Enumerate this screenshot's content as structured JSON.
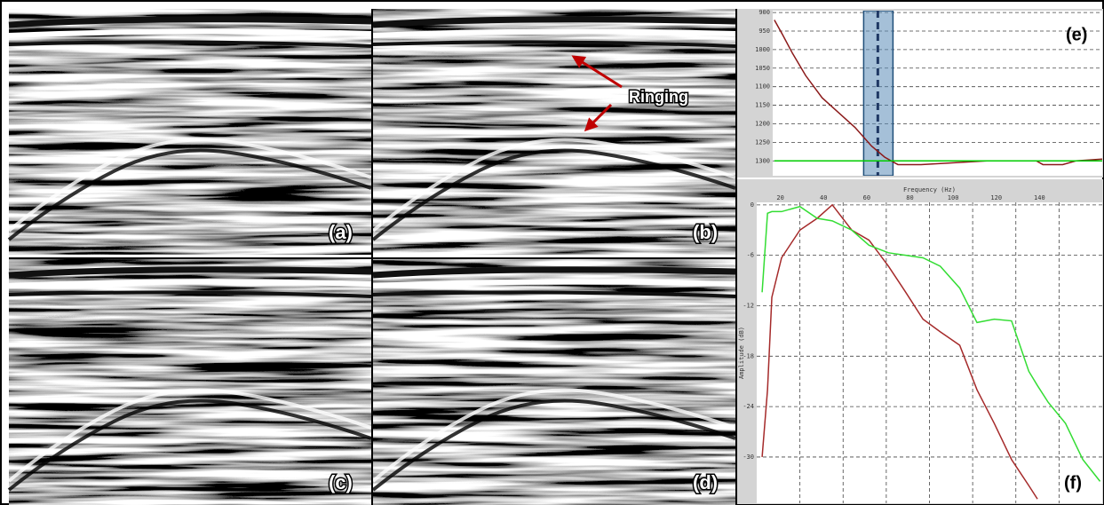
{
  "panels": [
    {
      "label": "(a)"
    },
    {
      "label": "(b)"
    },
    {
      "label": "(c)"
    },
    {
      "label": "(d)"
    }
  ],
  "annotation": "Ringing",
  "chart_data": [
    {
      "type": "line",
      "label": "(e)",
      "x": [
        0.5,
        3,
        6,
        10,
        15,
        20,
        25,
        30,
        34,
        38,
        45,
        55,
        65,
        80,
        82,
        88,
        92,
        100
      ],
      "series": [
        {
          "color": "#8b1a1a",
          "values": [
            920,
            960,
            1010,
            1070,
            1130,
            1170,
            1210,
            1260,
            1290,
            1310,
            1310,
            1305,
            1300,
            1300,
            1310,
            1310,
            1300,
            1295
          ]
        },
        {
          "color": "#00cc00",
          "values": [
            1300,
            1300,
            1300,
            1300,
            1300,
            1300,
            1300,
            1300,
            1300,
            1300,
            1300,
            1300,
            1300,
            1300,
            1300,
            1300,
            1300,
            1300
          ]
        }
      ],
      "xlim": [
        0,
        100
      ],
      "ylim": [
        1340,
        895
      ],
      "yticks": [
        900,
        950,
        1000,
        1050,
        1100,
        1150,
        1200,
        1250,
        1300
      ],
      "grid": true,
      "highlight": {
        "x": [
          27.6,
          36.5
        ],
        "marker": 31.9,
        "color": "#5b8db8"
      }
    },
    {
      "type": "line",
      "label": "(f)",
      "xlabel": "Frequency (Hz)",
      "ylabel": "Amplitude (dB)",
      "x": [
        2.5,
        5,
        7,
        11.5,
        20,
        28,
        35,
        44,
        52,
        61,
        69,
        77,
        85,
        94,
        102,
        110,
        118,
        126,
        130,
        135,
        143,
        151,
        159
      ],
      "series": [
        {
          "color": "#a52a2a",
          "values": [
            -30,
            -22,
            -11,
            -6.3,
            -3,
            -1.6,
            0,
            -3,
            -4.2,
            -7.3,
            -10.4,
            -13.6,
            -15.1,
            -16.7,
            -22,
            -26,
            -30.3,
            -33.4,
            -35,
            null,
            null,
            null,
            null
          ]
        },
        {
          "color": "#33dd33",
          "values": [
            -10.4,
            -1,
            -0.8,
            -0.8,
            -0.2,
            -1.6,
            -1.9,
            -3,
            -4.8,
            -5.7,
            -6,
            -6.3,
            -7.3,
            -9.9,
            -14,
            -13.6,
            -13.8,
            -19.8,
            -21.5,
            -23.5,
            -26,
            -30.3,
            -32.9
          ]
        }
      ],
      "xlim": [
        0,
        160
      ],
      "xticks": [
        20,
        40,
        60,
        80,
        100,
        120,
        140
      ],
      "ylim": [
        -35.5,
        0.3
      ],
      "yticks": [
        0,
        -6,
        -12,
        -18,
        -24,
        -30
      ],
      "grid": true
    }
  ]
}
